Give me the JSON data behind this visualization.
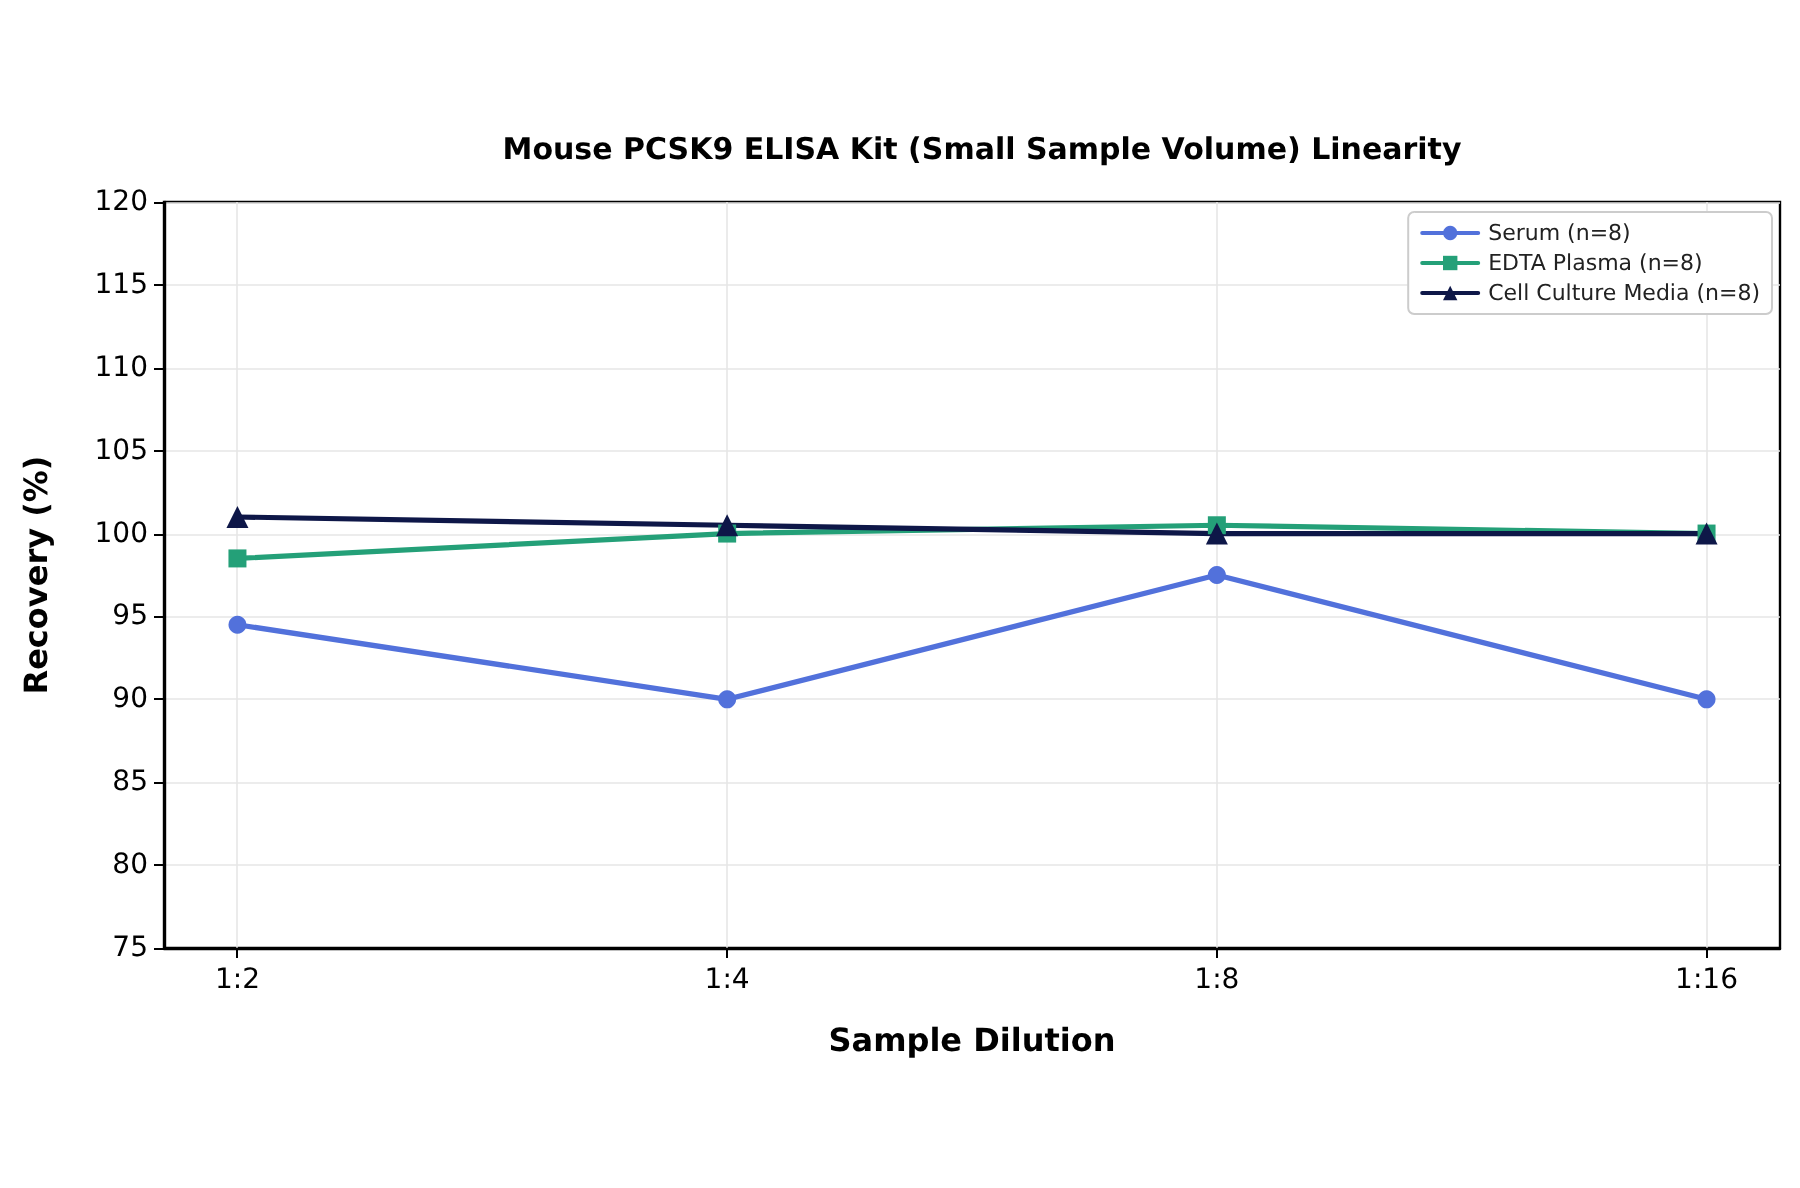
{
  "chart_data": {
    "type": "line",
    "title": "Mouse PCSK9 ELISA Kit (Small Sample Volume) Linearity",
    "xlabel": "Sample Dilution",
    "ylabel": "Recovery (%)",
    "categories": [
      "1:2",
      "1:4",
      "1:8",
      "1:16"
    ],
    "series": [
      {
        "name": "Serum (n=8)",
        "color": "#5271db",
        "marker": "circle",
        "values": [
          94.5,
          90,
          97.5,
          90
        ]
      },
      {
        "name": "EDTA Plasma (n=8)",
        "color": "#24a078",
        "marker": "square",
        "values": [
          98.5,
          100,
          100.5,
          100
        ]
      },
      {
        "name": "Cell Culture Media (n=8)",
        "color": "#0e1748",
        "marker": "triangle",
        "values": [
          101,
          100.5,
          100,
          100
        ]
      }
    ],
    "ylim": [
      75,
      120
    ],
    "yticks": [
      75,
      80,
      85,
      90,
      95,
      100,
      105,
      110,
      115,
      120
    ],
    "grid": true,
    "legend": "top right",
    "line_style": "solid"
  }
}
